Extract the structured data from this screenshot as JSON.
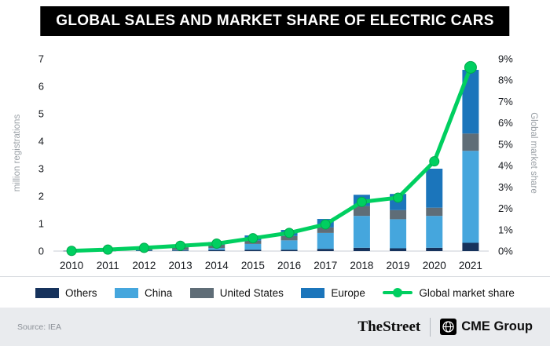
{
  "title": "GLOBAL SALES AND MARKET SHARE OF ELECTRIC CARS",
  "footer": {
    "source": "Source: IEA",
    "brand": "TheStreet",
    "partner": "CME Group"
  },
  "chart_data": {
    "type": "bar",
    "subtype": "stacked-bars-with-line-overlay",
    "title": "GLOBAL SALES AND MARKET SHARE OF ELECTRIC CARS",
    "categories": [
      "2010",
      "2011",
      "2012",
      "2013",
      "2014",
      "2015",
      "2016",
      "2017",
      "2018",
      "2019",
      "2020",
      "2021"
    ],
    "series": [
      {
        "name": "Others",
        "color": "#16325c",
        "values": [
          0.01,
          0.01,
          0.02,
          0.02,
          0.04,
          0.05,
          0.05,
          0.08,
          0.12,
          0.1,
          0.12,
          0.3
        ]
      },
      {
        "name": "China",
        "color": "#45a6dd",
        "values": [
          0.0,
          0.01,
          0.01,
          0.02,
          0.07,
          0.21,
          0.34,
          0.58,
          1.16,
          1.06,
          1.16,
          3.35
        ]
      },
      {
        "name": "United States",
        "color": "#5f6d77",
        "values": [
          0.0,
          0.02,
          0.05,
          0.1,
          0.12,
          0.12,
          0.16,
          0.2,
          0.36,
          0.33,
          0.3,
          0.63
        ]
      },
      {
        "name": "Europe",
        "color": "#1b75bb",
        "values": [
          0.0,
          0.01,
          0.04,
          0.07,
          0.1,
          0.19,
          0.22,
          0.31,
          0.41,
          0.59,
          1.42,
          2.32
        ]
      }
    ],
    "line": {
      "name": "Global market share",
      "color": "#00cf60",
      "edge_color": "#00a94c",
      "values": [
        0.01,
        0.07,
        0.15,
        0.25,
        0.35,
        0.6,
        0.85,
        1.25,
        2.3,
        2.5,
        4.2,
        8.6
      ]
    },
    "ylabel_left": "million registrations",
    "ylabel_right": "Global market share",
    "ylim_left": [
      0,
      7
    ],
    "ylim_right": [
      0,
      9
    ],
    "yticks_left": [
      0,
      1,
      2,
      3,
      4,
      5,
      6,
      7
    ],
    "yticks_right_labels": [
      "0%",
      "1%",
      "2%",
      "3%",
      "4%",
      "5%",
      "6%",
      "7%",
      "8%",
      "9%"
    ],
    "grid": false,
    "legend_position": "bottom"
  }
}
